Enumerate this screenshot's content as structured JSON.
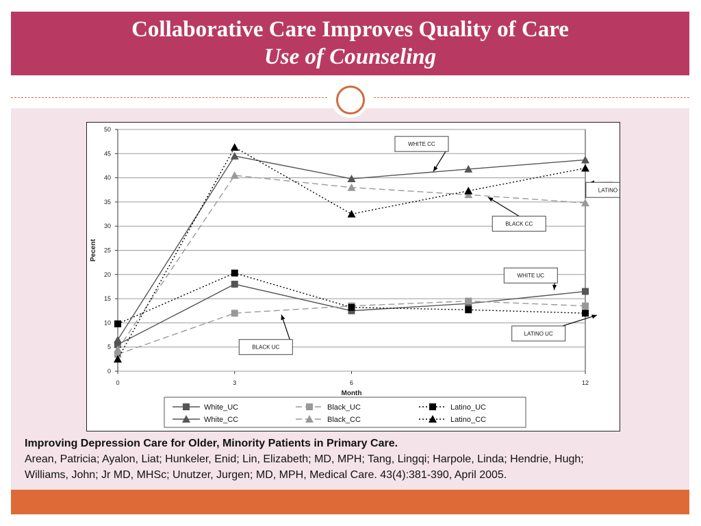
{
  "slide": {
    "title": "Collaborative  Care Improves Quality of Care",
    "subtitle": "Use of Counseling"
  },
  "caption": {
    "title": "Improving Depression Care for Older, Minority Patients in Primary Care.",
    "line1": "Arean, Patricia; Ayalon, Liat; Hunkeler, Enid; Lin, Elizabeth;  MD, MPH; Tang, Lingqi; Harpole, Linda; Hendrie, Hugh;",
    "line2": "Williams, John;  Jr MD, MHSc; Unutzer, Jurgen; MD, MPH, Medical Care. 43(4):381-390, April 2005."
  },
  "colors": {
    "title_bar": "#b83a63",
    "footer_bar": "#de6b37",
    "background": "#f4e4ea",
    "ornament": "#d06c3d"
  },
  "chart_data": {
    "type": "line",
    "xlabel": "Month",
    "ylabel": "Pecent",
    "xlim": [
      0,
      12
    ],
    "ylim": [
      0,
      50
    ],
    "x_ticks": [
      0,
      3,
      6,
      12
    ],
    "y_ticks": [
      0,
      5,
      10,
      15,
      20,
      25,
      30,
      35,
      40,
      45,
      50
    ],
    "grid": true,
    "legend_position": "bottom",
    "x": [
      0,
      3,
      6,
      9,
      12
    ],
    "series": [
      {
        "name": "White_UC",
        "values": [
          5.5,
          18,
          12.5,
          14,
          16.5
        ],
        "marker": "square",
        "color": "#555555",
        "dash": "solid"
      },
      {
        "name": "Black_UC",
        "values": [
          3.5,
          12,
          13.5,
          14.5,
          13.5
        ],
        "marker": "square",
        "color": "#999999",
        "dash": "dashed"
      },
      {
        "name": "Latino_UC",
        "values": [
          9.8,
          20.3,
          13.2,
          12.7,
          12
        ],
        "marker": "square",
        "color": "#000000",
        "dash": "dotted"
      },
      {
        "name": "White_CC",
        "values": [
          6.5,
          44.5,
          39.8,
          41.8,
          43.7
        ],
        "marker": "triangle",
        "color": "#555555",
        "dash": "solid"
      },
      {
        "name": "Black_CC",
        "values": [
          4.5,
          40.5,
          38,
          36.5,
          34.8
        ],
        "marker": "triangle",
        "color": "#999999",
        "dash": "dashed"
      },
      {
        "name": "Latino_CC",
        "values": [
          2.5,
          46.3,
          32.5,
          37.3,
          42
        ],
        "marker": "triangle",
        "color": "#000000",
        "dash": "dotted"
      }
    ],
    "annotations": [
      {
        "text": "WHITE CC",
        "x": 7.8,
        "y": 47,
        "target_x": 8.1,
        "target_y": 41.3
      },
      {
        "text": "LATINO CC",
        "x": 12.7,
        "y": 37.5,
        "target_x": 12.1,
        "target_y": 39
      },
      {
        "text": "BLACK CC",
        "x": 10.3,
        "y": 30.5,
        "target_x": 9.5,
        "target_y": 36
      },
      {
        "text": "WHITE UC",
        "x": 10.6,
        "y": 19.8,
        "target_x": 11.2,
        "target_y": 16.8
      },
      {
        "text": "LATINO UC",
        "x": 10.8,
        "y": 7.8,
        "target_x": 12.3,
        "target_y": 11.6
      },
      {
        "text": "BLACK UC",
        "x": 3.8,
        "y": 5,
        "target_x": 4.2,
        "target_y": 11.7
      }
    ]
  }
}
